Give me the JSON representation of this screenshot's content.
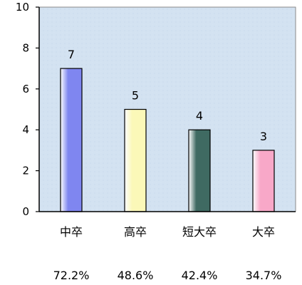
{
  "chart_data": {
    "type": "bar",
    "title": "",
    "xlabel": "",
    "ylabel": "",
    "categories": [
      "中卒",
      "高卒",
      "短大卒",
      "大卒"
    ],
    "values": [
      7,
      5,
      4,
      3
    ],
    "value_labels": [
      "7",
      "5",
      "4",
      "3"
    ],
    "percentages": [
      "72.2%",
      "48.6%",
      "42.4%",
      "34.7%"
    ],
    "ylim": [
      0,
      10
    ],
    "yticks": [
      "0",
      "2",
      "4",
      "6",
      "8",
      "10"
    ],
    "grid": false,
    "legend": "none",
    "bar_colors": [
      "#7f86f0",
      "#fbf8b8",
      "#3f6a62",
      "#f8a8c8"
    ],
    "plot_background": "#cfe0f0"
  }
}
